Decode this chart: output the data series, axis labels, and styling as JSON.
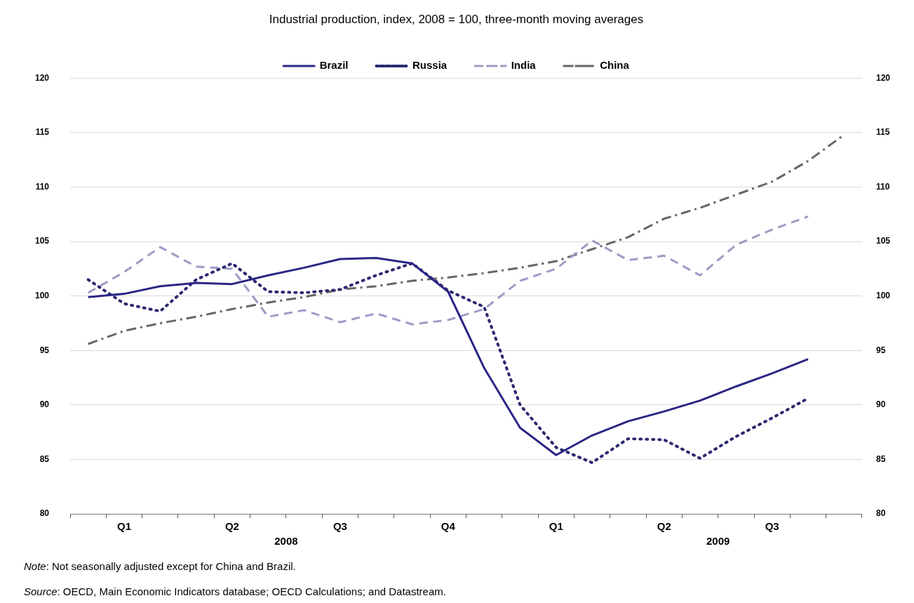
{
  "chart_data": {
    "type": "line",
    "title": "Industrial production, index, 2008 = 100, three-month moving averages",
    "categories": [
      null,
      "Q1",
      null,
      null,
      "Q2",
      null,
      null,
      "Q3",
      null,
      null,
      "Q4",
      null,
      null,
      "Q1",
      null,
      null,
      "Q2",
      null,
      null,
      "Q3",
      null,
      null
    ],
    "series": [
      {
        "name": "Brazil",
        "color": "#2b2685",
        "line_style": "solid",
        "values": [
          99.9,
          100.2,
          100.9,
          101.2,
          101.1,
          101.9,
          102.6,
          103.4,
          103.5,
          103.0,
          100.4,
          93.4,
          87.9,
          85.4,
          87.2,
          88.5,
          89.4,
          90.4,
          91.7,
          92.9,
          94.2,
          null
        ]
      },
      {
        "name": "Russia",
        "color": "#2b2870",
        "line_style": "dotted",
        "values": [
          101.5,
          99.3,
          98.6,
          101.5,
          103.0,
          100.4,
          100.3,
          100.6,
          101.9,
          103.0,
          100.5,
          99.0,
          90.0,
          86.1,
          84.7,
          86.9,
          86.8,
          85.1,
          87.1,
          88.8,
          90.6,
          null
        ]
      },
      {
        "name": "India",
        "color": "#9c9cc6",
        "line_style": "dashed",
        "values": [
          100.3,
          102.2,
          104.5,
          102.7,
          102.5,
          98.1,
          98.7,
          97.6,
          98.4,
          97.4,
          97.8,
          98.8,
          101.4,
          102.5,
          105.1,
          103.3,
          103.7,
          101.9,
          104.7,
          106.1,
          107.3,
          null
        ]
      },
      {
        "name": "China",
        "color": "#666666",
        "line_style": "dashdot",
        "values": [
          95.6,
          96.8,
          97.5,
          98.1,
          98.8,
          99.4,
          99.9,
          100.6,
          100.9,
          101.4,
          101.7,
          102.1,
          102.6,
          103.2,
          104.3,
          105.4,
          107.1,
          108.1,
          109.3,
          110.5,
          112.4,
          114.8
        ]
      }
    ],
    "ylim": [
      80,
      120
    ],
    "yticks": [
      80,
      85,
      90,
      95,
      100,
      105,
      110,
      115,
      120
    ],
    "y2lim": [
      80,
      120
    ],
    "y2ticks": [
      80,
      85,
      90,
      95,
      100,
      105,
      110,
      115,
      120
    ],
    "grid": "y",
    "legend": "top",
    "marker": "none",
    "annotations": [
      "2008",
      "2009",
      "Note: Not seasonally adjusted except for China and Brazil.",
      "Source: OECD, Main Economic Indicators database; OECD Calculations; and Datastream."
    ]
  }
}
